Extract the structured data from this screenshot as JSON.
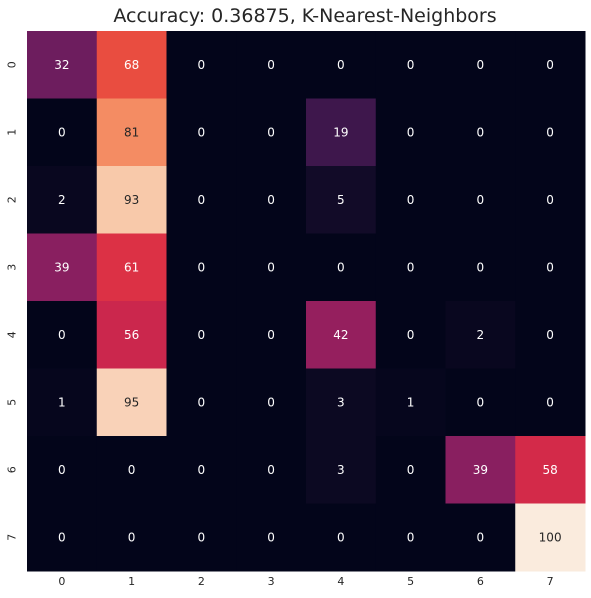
{
  "chart_data": {
    "type": "heatmap",
    "title": "Accuracy: 0.36875, K-Nearest-Neighbors",
    "xlabel": "",
    "ylabel": "",
    "x_categories": [
      "0",
      "1",
      "2",
      "3",
      "4",
      "5",
      "6",
      "7"
    ],
    "y_categories": [
      "0",
      "1",
      "2",
      "3",
      "4",
      "5",
      "6",
      "7"
    ],
    "values": [
      [
        32,
        68,
        0,
        0,
        0,
        0,
        0,
        0
      ],
      [
        0,
        81,
        0,
        0,
        19,
        0,
        0,
        0
      ],
      [
        2,
        93,
        0,
        0,
        5,
        0,
        0,
        0
      ],
      [
        39,
        61,
        0,
        0,
        0,
        0,
        0,
        0
      ],
      [
        0,
        56,
        0,
        0,
        42,
        0,
        2,
        0
      ],
      [
        1,
        95,
        0,
        0,
        3,
        1,
        0,
        0
      ],
      [
        0,
        0,
        0,
        0,
        3,
        0,
        39,
        58
      ],
      [
        0,
        0,
        0,
        0,
        0,
        0,
        0,
        100
      ]
    ],
    "vmin": 0,
    "vmax": 100,
    "colormap": "rocket",
    "colorbar": false,
    "annotations": true,
    "grid": false
  }
}
